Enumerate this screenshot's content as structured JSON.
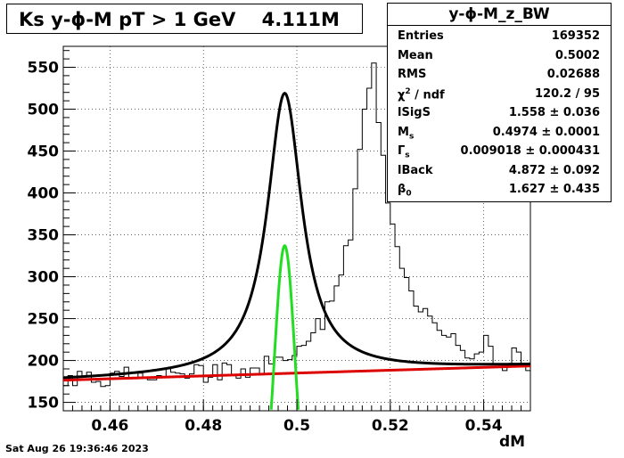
{
  "chart_data": {
    "type": "histogram",
    "title": "Ks y-ϕ-M pT > 1 GeV    4.111M",
    "xlabel": "dM",
    "ylabel": "",
    "xlim": [
      0.45,
      0.55
    ],
    "ylim": [
      140,
      575
    ],
    "x_ticks": [
      "0.46",
      "0.48",
      "0.5",
      "0.52",
      "0.54"
    ],
    "y_ticks": [
      "150",
      "200",
      "250",
      "300",
      "350",
      "400",
      "450",
      "500",
      "550"
    ],
    "grid": true,
    "bins": {
      "x_start": 0.45,
      "bin_width": 0.001,
      "counts": [
        170,
        182,
        170,
        187,
        181,
        186,
        174,
        175,
        169,
        170,
        185,
        187,
        181,
        192,
        179,
        179,
        185,
        180,
        177,
        177,
        182,
        180,
        190,
        186,
        185,
        184,
        179,
        184,
        195,
        194,
        174,
        180,
        195,
        177,
        197,
        195,
        183,
        179,
        190,
        180,
        191,
        191,
        183,
        205,
        196,
        204,
        204,
        200,
        201,
        206,
        217,
        218,
        223,
        233,
        250,
        237,
        270,
        271,
        289,
        302,
        337,
        344,
        405,
        452,
        500,
        525,
        555,
        484,
        445,
        388,
        363,
        336,
        310,
        299,
        283,
        265,
        258,
        262,
        253,
        245,
        236,
        230,
        228,
        232,
        218,
        212,
        203,
        202,
        208,
        210,
        230,
        217,
        196,
        195,
        188,
        193,
        215,
        210,
        196,
        188
      ]
    },
    "fits": [
      {
        "name": "total",
        "color": "#000000"
      },
      {
        "name": "signal",
        "color": "#22dd22"
      },
      {
        "name": "background",
        "color": "#dd0000"
      }
    ],
    "stats": {
      "title": "y-ϕ-M_z_BW",
      "rows": [
        {
          "key": "Entries",
          "value": "169352"
        },
        {
          "key": "Mean",
          "value": "0.5002"
        },
        {
          "key": "RMS",
          "value": "0.02688"
        },
        {
          "key": "chi2_ndf",
          "value": "120.2 / 95"
        },
        {
          "key": "lSigS",
          "value": "1.558 ± 0.036"
        },
        {
          "key": "Ms",
          "value": "0.4974 ± 0.0001"
        },
        {
          "key": "Gs",
          "value": "0.009018 ± 0.000431"
        },
        {
          "key": "lBack",
          "value": "4.872 ± 0.092"
        },
        {
          "key": "b0",
          "value": "1.627 ± 0.435"
        }
      ]
    },
    "datestamp": "Sat Aug 26 19:36:46 2023"
  }
}
